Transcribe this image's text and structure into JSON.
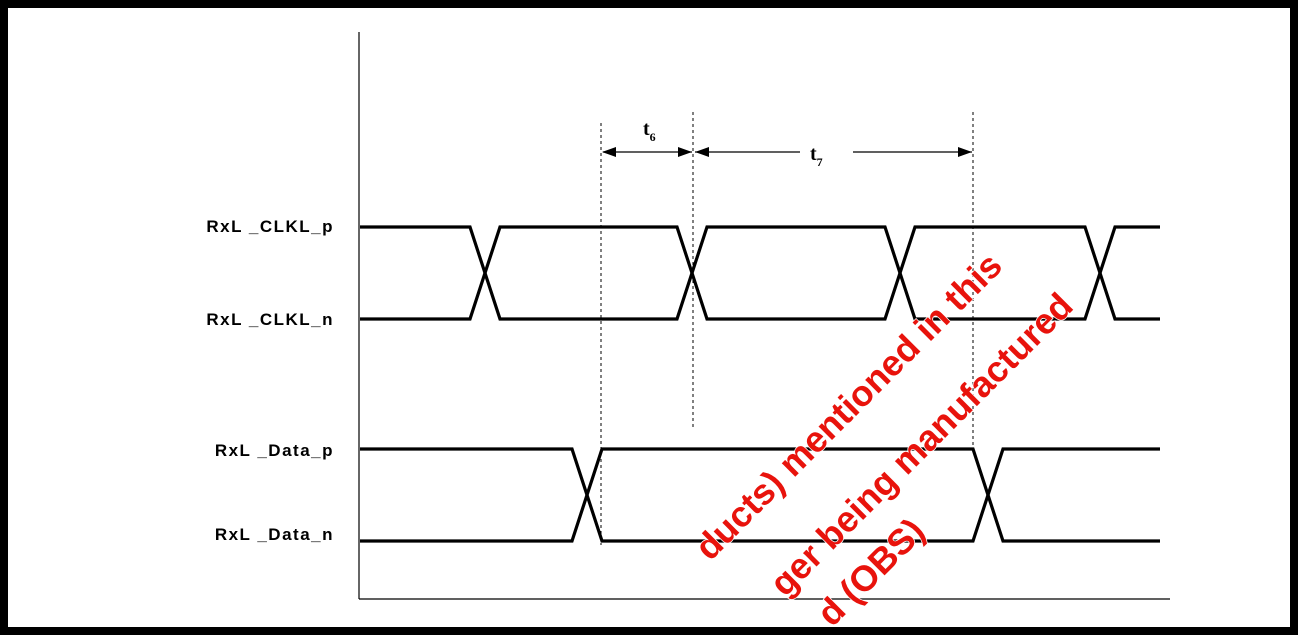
{
  "signals": {
    "clk_p": "RxL _CLKL_p",
    "clk_n": "RxL _CLKL_n",
    "data_p": "RxL _Data_p",
    "data_n": "RxL _Data_n"
  },
  "timing": {
    "t6": {
      "base": "t",
      "sub": "6"
    },
    "t7": {
      "base": "t",
      "sub": "7"
    }
  },
  "watermark": {
    "lines": [
      "ducts) mentioned in this",
      "ger being manufactured",
      "d (OBS)"
    ],
    "color": "#e8130c"
  },
  "colors": {
    "line": "#000000",
    "background": "#ffffff"
  }
}
